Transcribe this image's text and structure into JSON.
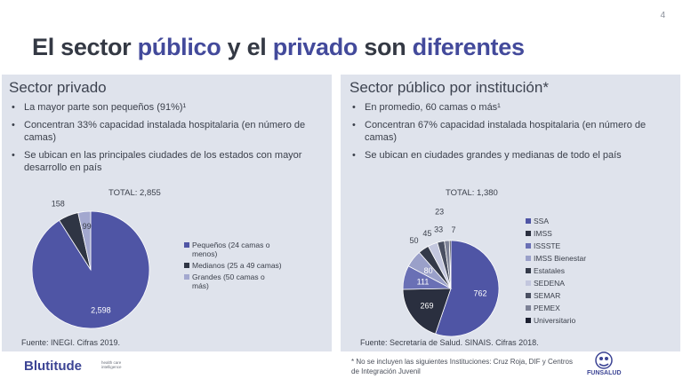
{
  "slide": {
    "page_number": "4",
    "title_parts": [
      {
        "text": "El sector ",
        "highlight": false
      },
      {
        "text": "público",
        "highlight": true
      },
      {
        "text": " y el ",
        "highlight": false
      },
      {
        "text": "privado",
        "highlight": true
      },
      {
        "text": " son ",
        "highlight": false
      },
      {
        "text": "diferentes",
        "highlight": true
      }
    ]
  },
  "left_panel": {
    "title": "Sector privado",
    "bullets": [
      "La mayor parte son pequeños (91%)¹",
      "Concentran 33% capacidad instalada hospitalaria (en número de camas)",
      "Se ubican en las principales ciudades de los estados con mayor desarrollo en país"
    ],
    "total_label": "TOTAL: 2,855",
    "source": "Fuente: INEGI. Cifras 2019."
  },
  "right_panel": {
    "title": "Sector público por institución*",
    "bullets": [
      "En promedio, 60 camas o más¹",
      "Concentran 67% capacidad instalada hospitalaria (en número de camas)",
      "Se ubican en ciudades grandes y medianas de todo el país"
    ],
    "total_label": "TOTAL: 1,380",
    "source": "Fuente: Secretaría de Salud. SINAIS. Cifras 2018."
  },
  "chart_data": [
    {
      "type": "pie",
      "title": "TOTAL: 2,855",
      "categories": [
        "Pequeños (24 camas o menos)",
        "Medianos (25 a 49 camas)",
        "Grandes (50 camas o más)"
      ],
      "values": [
        2598,
        158,
        99
      ],
      "value_labels": [
        "2,598",
        "158",
        "99"
      ],
      "colors": [
        "#4f55a5",
        "#2f3544",
        "#a3a8cf"
      ],
      "legend": "right"
    },
    {
      "type": "pie",
      "title": "TOTAL: 1,380",
      "categories": [
        "SSA",
        "IMSS",
        "ISSSTE",
        "IMSS Bienestar",
        "Estatales",
        "SEDENA",
        "SEMAR",
        "PEMEX",
        "Universitario"
      ],
      "values": [
        762,
        269,
        111,
        80,
        50,
        45,
        33,
        23,
        7
      ],
      "value_labels": [
        "762",
        "269",
        "111",
        "80",
        "50",
        "45",
        "33",
        "23",
        "7"
      ],
      "colors": [
        "#4f55a5",
        "#2a2f3f",
        "#6a70b5",
        "#9aa0c9",
        "#343a49",
        "#c3c7de",
        "#4a5062",
        "#7d8296",
        "#1c2030"
      ],
      "legend": "right"
    }
  ],
  "footer": {
    "logo": "Blutitude",
    "logo_tagline": "health care intelligence",
    "footnote": "* No se incluyen las siguientes Instituciones: Cruz Roja, DIF y Centros de Integración Juvenil",
    "partner_logo": "FUNSALUD",
    "partner_icon": "funsalud-emblem-icon"
  }
}
